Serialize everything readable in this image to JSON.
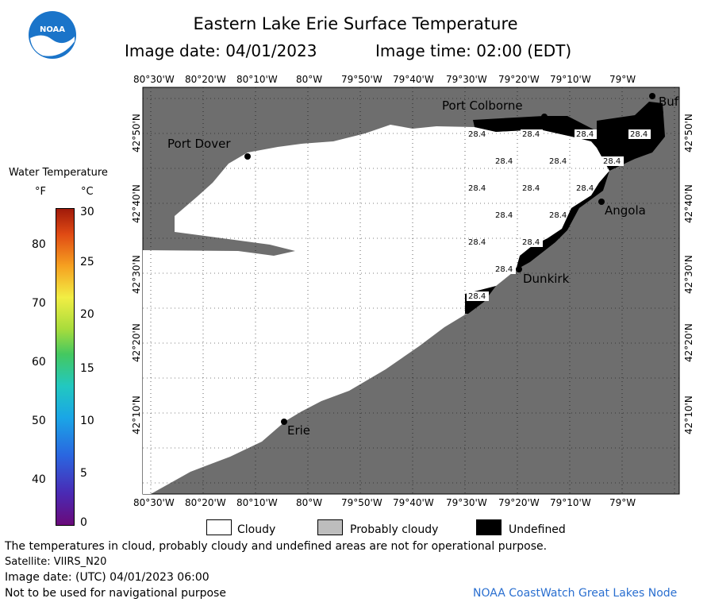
{
  "header": {
    "title": "Eastern Lake Erie Surface Temperature",
    "image_date": "Image date: 04/01/2023",
    "image_time": "Image time: 02:00 (EDT)"
  },
  "logo": {
    "text": "NOAA"
  },
  "legend": {
    "title": "Water Temperature",
    "unit_f": "°F",
    "unit_c": "°C",
    "f_ticks": [
      "80",
      "70",
      "60",
      "50",
      "40"
    ],
    "c_ticks": [
      "30",
      "25",
      "20",
      "15",
      "10",
      "5",
      "0"
    ]
  },
  "map": {
    "lon_labels_top": [
      "80°30'W",
      "80°20'W",
      "80°10'W",
      "80°W",
      "79°50'W",
      "79°40'W",
      "79°30'W",
      "79°20'W",
      "79°10'W",
      "79°W"
    ],
    "lon_labels_bottom": [
      "80°30'W",
      "80°20'W",
      "80°10'W",
      "80°W",
      "79°50'W",
      "79°40'W",
      "79°30'W",
      "79°20'W",
      "79°10'W",
      "79°W"
    ],
    "lat_labels": [
      "42°50'N",
      "42°40'N",
      "42°30'N",
      "42°20'N",
      "42°10'N"
    ],
    "places": {
      "port_colborne": "Port Colborne",
      "port_dover": "Port Dover",
      "angola": "Angola",
      "dunkirk": "Dunkirk",
      "erie": "Erie",
      "buffalo": "Buf"
    },
    "temperature_value": "28.4"
  },
  "key": {
    "cloudy": "Cloudy",
    "probably_cloudy": "Probably cloudy",
    "undefined": "Undefined",
    "colors": {
      "cloudy": "#ffffff",
      "probably_cloudy": "#bdbdbd",
      "undefined": "#000000",
      "land": "#6e6e6e"
    }
  },
  "footer": {
    "disclaimer": "The temperatures in cloud, probably cloudy and undefined areas are not for operational purpose.",
    "satellite": "Satellite: VIIRS_N20",
    "utc_date": "Image date: (UTC) 04/01/2023  06:00",
    "nav_warning": "Not to be used for navigational purpose",
    "credit": "NOAA CoastWatch Great Lakes Node"
  }
}
